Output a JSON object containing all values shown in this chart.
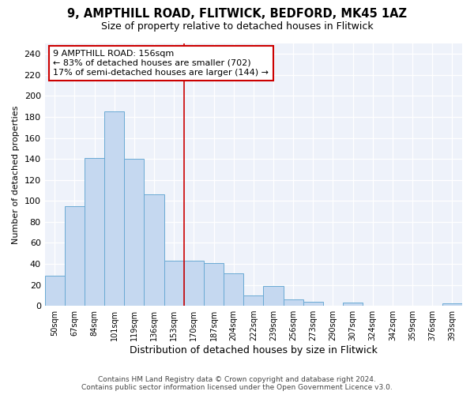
{
  "title_line1": "9, AMPTHILL ROAD, FLITWICK, BEDFORD, MK45 1AZ",
  "title_line2": "Size of property relative to detached houses in Flitwick",
  "xlabel": "Distribution of detached houses by size in Flitwick",
  "ylabel": "Number of detached properties",
  "bar_color": "#c5d8f0",
  "bar_edge_color": "#6aaad4",
  "categories": [
    "50sqm",
    "67sqm",
    "84sqm",
    "101sqm",
    "119sqm",
    "136sqm",
    "153sqm",
    "170sqm",
    "187sqm",
    "204sqm",
    "222sqm",
    "239sqm",
    "256sqm",
    "273sqm",
    "290sqm",
    "307sqm",
    "324sqm",
    "342sqm",
    "359sqm",
    "376sqm",
    "393sqm"
  ],
  "values": [
    29,
    95,
    141,
    185,
    140,
    106,
    43,
    43,
    41,
    31,
    10,
    19,
    6,
    4,
    0,
    3,
    0,
    0,
    0,
    0,
    2
  ],
  "ylim": [
    0,
    250
  ],
  "yticks": [
    0,
    20,
    40,
    60,
    80,
    100,
    120,
    140,
    160,
    180,
    200,
    220,
    240
  ],
  "vline_x": 6.5,
  "annotation_title": "9 AMPTHILL ROAD: 156sqm",
  "annotation_line2": "← 83% of detached houses are smaller (702)",
  "annotation_line3": "17% of semi-detached houses are larger (144) →",
  "vline_color": "#cc0000",
  "annotation_box_color": "#ffffff",
  "annotation_box_edge_color": "#cc0000",
  "background_color": "#eef2fa",
  "footer_line1": "Contains HM Land Registry data © Crown copyright and database right 2024.",
  "footer_line2": "Contains public sector information licensed under the Open Government Licence v3.0."
}
